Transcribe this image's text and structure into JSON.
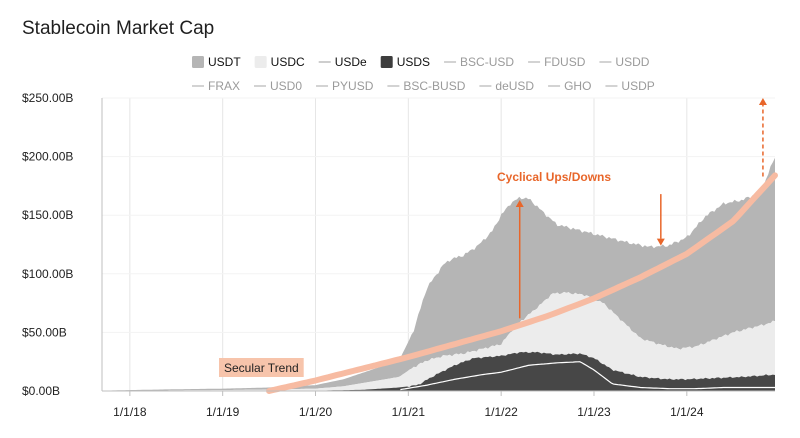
{
  "chart_data": {
    "type": "area",
    "title": "Stablecoin Market Cap",
    "xlabel": "",
    "ylabel": "",
    "ylim": [
      0,
      250
    ],
    "y_ticks": [
      "$0.00B",
      "$50.00B",
      "$100.00B",
      "$150.00B",
      "$200.00B",
      "$250.00B"
    ],
    "y_tick_values": [
      0,
      50,
      100,
      150,
      200,
      250
    ],
    "x_ticks": [
      "1/1/18",
      "1/1/19",
      "1/1/20",
      "1/1/21",
      "1/1/22",
      "1/1/23",
      "1/1/24"
    ],
    "x_tick_values": [
      2018,
      2019,
      2020,
      2021,
      2022,
      2023,
      2024
    ],
    "xlim": [
      2017.7,
      2024.95
    ],
    "colors": {
      "USDT": "#b5b5b5",
      "USDC": "#ececec",
      "USDe": "#ffffff",
      "USDS": "#474747",
      "other": "#bdbdbd",
      "trend": "#f7bba2",
      "annotation": "#e8662a"
    },
    "legend_row1": [
      {
        "name": "USDT",
        "style": "box",
        "color": "#b5b5b5",
        "active": true
      },
      {
        "name": "USDC",
        "style": "box",
        "color": "#ececec",
        "active": true
      },
      {
        "name": "USDe",
        "style": "line",
        "color": "#bdbdbd",
        "active": true
      },
      {
        "name": "USDS",
        "style": "box",
        "color": "#3d3d3d",
        "active": true
      },
      {
        "name": "BSC-USD",
        "style": "line",
        "color": "#c4c4c4",
        "active": false
      },
      {
        "name": "FDUSD",
        "style": "line",
        "color": "#c4c4c4",
        "active": false
      },
      {
        "name": "USDD",
        "style": "line",
        "color": "#c4c4c4",
        "active": false
      }
    ],
    "legend_row2": [
      {
        "name": "FRAX",
        "style": "line",
        "color": "#c4c4c4",
        "active": false
      },
      {
        "name": "USD0",
        "style": "line",
        "color": "#c4c4c4",
        "active": false
      },
      {
        "name": "PYUSD",
        "style": "line",
        "color": "#c4c4c4",
        "active": false
      },
      {
        "name": "BSC-BUSD",
        "style": "line",
        "color": "#c4c4c4",
        "active": false
      },
      {
        "name": "deUSD",
        "style": "line",
        "color": "#c4c4c4",
        "active": false
      },
      {
        "name": "GHO",
        "style": "line",
        "color": "#c4c4c4",
        "active": false
      },
      {
        "name": "USDP",
        "style": "line",
        "color": "#c4c4c4",
        "active": false
      }
    ],
    "series": [
      {
        "name": "Total (USDT top)",
        "x": [
          2017.7,
          2018.0,
          2018.5,
          2019.0,
          2019.5,
          2020.0,
          2020.3,
          2020.6,
          2020.9,
          2021.05,
          2021.2,
          2021.38,
          2021.45,
          2021.6,
          2021.75,
          2021.9,
          2022.0,
          2022.1,
          2022.2,
          2022.3,
          2022.42,
          2022.6,
          2022.8,
          2023.0,
          2023.2,
          2023.4,
          2023.6,
          2023.8,
          2024.0,
          2024.2,
          2024.4,
          2024.6,
          2024.8,
          2024.95
        ],
        "values": [
          0.3,
          0.8,
          1.5,
          2,
          3,
          5,
          10,
          18,
          26,
          50,
          88,
          108,
          112,
          116,
          124,
          136,
          150,
          160,
          165,
          164,
          155,
          142,
          138,
          134,
          130,
          126,
          123,
          124,
          131,
          149,
          160,
          163,
          170,
          200
        ]
      },
      {
        "name": "USDC top",
        "x": [
          2017.7,
          2018.0,
          2018.5,
          2019.0,
          2019.5,
          2020.0,
          2020.3,
          2020.6,
          2020.9,
          2021.05,
          2021.2,
          2021.38,
          2021.6,
          2021.8,
          2022.0,
          2022.15,
          2022.22,
          2022.4,
          2022.55,
          2022.7,
          2022.9,
          2023.1,
          2023.3,
          2023.5,
          2023.7,
          2023.9,
          2024.1,
          2024.3,
          2024.5,
          2024.7,
          2024.9,
          2024.95
        ],
        "values": [
          0.1,
          0.3,
          0.5,
          0.8,
          1.2,
          2,
          4,
          8,
          12,
          20,
          26,
          30,
          32,
          36,
          40,
          55,
          60,
          72,
          83,
          84,
          82,
          75,
          60,
          45,
          40,
          36,
          38,
          44,
          50,
          54,
          58,
          60
        ]
      },
      {
        "name": "USDS top",
        "x": [
          2017.7,
          2020.0,
          2020.5,
          2020.9,
          2021.1,
          2021.3,
          2021.5,
          2021.7,
          2022.0,
          2022.2,
          2022.4,
          2022.6,
          2022.85,
          2023.0,
          2023.2,
          2023.5,
          2023.8,
          2024.0,
          2024.3,
          2024.6,
          2024.95
        ],
        "values": [
          0,
          0.3,
          1,
          3,
          5,
          14,
          22,
          28,
          30,
          33,
          33,
          31,
          32,
          28,
          18,
          12,
          10,
          10,
          11,
          12,
          14
        ]
      },
      {
        "name": "USDe",
        "style": "line",
        "x": [
          2017.7,
          2020.0,
          2020.9,
          2021.2,
          2021.5,
          2021.8,
          2022.0,
          2022.3,
          2022.6,
          2022.85,
          2023.0,
          2023.2,
          2023.5,
          2023.8,
          2024.1,
          2024.4,
          2024.7,
          2024.95
        ],
        "values": [
          0,
          0.1,
          1,
          5,
          10,
          14,
          16,
          22,
          24,
          25,
          18,
          6,
          3,
          2,
          2,
          3,
          3,
          3
        ]
      },
      {
        "name": "Secular Trend",
        "style": "trend-line",
        "x": [
          2019.5,
          2020.0,
          2020.5,
          2021.0,
          2021.5,
          2022.0,
          2022.5,
          2023.0,
          2023.5,
          2024.0,
          2024.5,
          2024.95
        ],
        "values": [
          0,
          9,
          19,
          29,
          40,
          51,
          64,
          79,
          97,
          117,
          145,
          184
        ]
      }
    ],
    "annotations": [
      {
        "text": "Cyclical Ups/Downs",
        "color": "#e8662a"
      },
      {
        "text": "Secular Trend",
        "color": "#222222",
        "background": "#f7c4ab"
      }
    ],
    "arrows": [
      {
        "name": "up-arrow-2022",
        "x": 2022.2,
        "from": 62,
        "to": 163,
        "dashed": false
      },
      {
        "name": "down-arrow-2023",
        "x": 2023.72,
        "from": 168,
        "to": 124,
        "dashed": false
      },
      {
        "name": "up-arrow-2024",
        "x": 2024.82,
        "from": 183,
        "to": 250,
        "dashed": true
      }
    ]
  }
}
